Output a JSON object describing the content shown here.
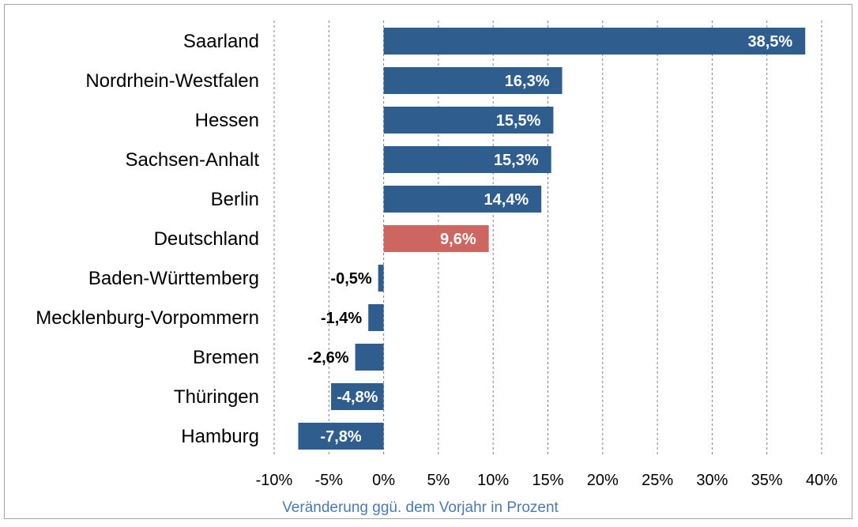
{
  "chart_data": {
    "type": "bar",
    "orientation": "horizontal",
    "categories": [
      "Saarland",
      "Nordrhein-Westfalen",
      "Hessen",
      "Sachsen-Anhalt",
      "Berlin",
      "Deutschland",
      "Baden-Württemberg",
      "Mecklenburg-Vorpommern",
      "Bremen",
      "Thüringen",
      "Hamburg"
    ],
    "values": [
      38.5,
      16.3,
      15.5,
      15.3,
      14.4,
      9.6,
      -0.5,
      -1.4,
      -2.6,
      -4.8,
      -7.8
    ],
    "value_labels": [
      "38,5%",
      "16,3%",
      "15,5%",
      "15,3%",
      "14,4%",
      "9,6%",
      "-0,5%",
      "-1,4%",
      "-2,6%",
      "-4,8%",
      "-7,8%"
    ],
    "xlabel": "Veränderung ggü. dem Vorjahr in Prozent",
    "ylabel": "",
    "xlim": [
      -10,
      40
    ],
    "ticks": [
      -10,
      -5,
      0,
      5,
      10,
      15,
      20,
      25,
      30,
      35,
      40
    ],
    "tick_labels": [
      "-10%",
      "-5%",
      "0%",
      "5%",
      "10%",
      "15%",
      "20%",
      "25%",
      "30%",
      "35%",
      "40%"
    ],
    "grid": "vertical dashed",
    "legend": "none",
    "colors": {
      "default_bar": "#2e5d8e",
      "highlight_bar": "#cd6660",
      "highlight_category": "Deutschland"
    }
  }
}
